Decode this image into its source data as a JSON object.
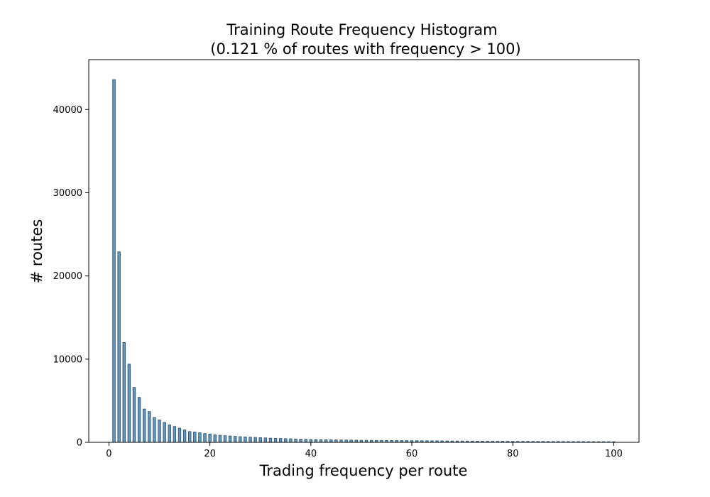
{
  "chart_data": {
    "type": "bar",
    "title": "Training Route Frequency Histogram",
    "subtitle": "(0.121 % of routes with frequency > 100)",
    "xlabel": "Trading frequency per route",
    "ylabel": "# routes",
    "xlim": [
      -4,
      105
    ],
    "ylim": [
      0,
      46000
    ],
    "xticks": [
      0,
      20,
      40,
      60,
      80,
      100
    ],
    "yticks": [
      0,
      10000,
      20000,
      30000,
      40000
    ],
    "grid": false,
    "colors": {
      "bar_fill": "#5f97c2",
      "bar_edge": "#2a4a63"
    },
    "x": [
      1,
      2,
      3,
      4,
      5,
      6,
      7,
      8,
      9,
      10,
      11,
      12,
      13,
      14,
      15,
      16,
      17,
      18,
      19,
      20,
      21,
      22,
      23,
      24,
      25,
      26,
      27,
      28,
      29,
      30,
      31,
      32,
      33,
      34,
      35,
      36,
      37,
      38,
      39,
      40,
      41,
      42,
      43,
      44,
      45,
      46,
      47,
      48,
      49,
      50,
      51,
      52,
      53,
      54,
      55,
      56,
      57,
      58,
      59,
      60,
      61,
      62,
      63,
      64,
      65,
      66,
      67,
      68,
      69,
      70,
      71,
      72,
      73,
      74,
      75,
      76,
      77,
      78,
      79,
      80,
      81,
      82,
      83,
      84,
      85,
      86,
      87,
      88,
      89,
      90,
      91,
      92,
      93,
      94,
      95,
      96,
      97,
      98,
      99,
      100
    ],
    "values": [
      43600,
      22900,
      12000,
      9400,
      6600,
      5400,
      4000,
      3700,
      3000,
      2700,
      2400,
      2100,
      1900,
      1700,
      1500,
      1300,
      1250,
      1150,
      1050,
      1000,
      900,
      850,
      800,
      760,
      720,
      680,
      650,
      620,
      590,
      560,
      530,
      500,
      480,
      460,
      440,
      420,
      400,
      380,
      370,
      350,
      340,
      330,
      320,
      310,
      300,
      290,
      280,
      270,
      260,
      250,
      245,
      240,
      235,
      230,
      225,
      220,
      215,
      210,
      205,
      200,
      195,
      190,
      185,
      180,
      175,
      170,
      165,
      160,
      155,
      150,
      145,
      140,
      135,
      130,
      125,
      120,
      118,
      116,
      114,
      112,
      110,
      108,
      106,
      104,
      102,
      100,
      98,
      96,
      94,
      92,
      90,
      88,
      86,
      84,
      82,
      80,
      78,
      76,
      74,
      72
    ]
  }
}
